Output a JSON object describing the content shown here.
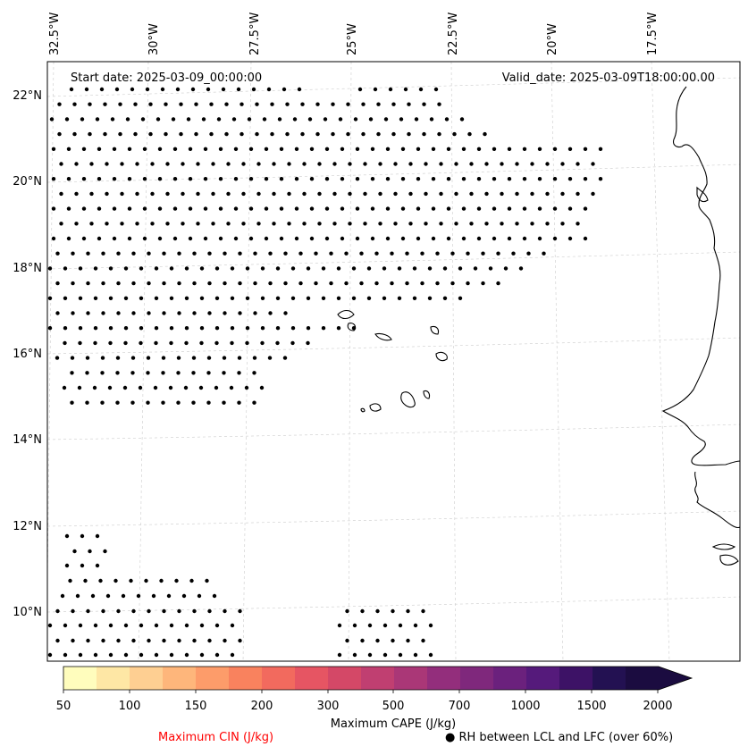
{
  "header": {
    "start_date": "Start date: 2025-03-09_00:00:00",
    "valid_date": "Valid_date: 2025-03-09T18:00:00.00"
  },
  "map": {
    "lon_labels": [
      "32.5°W",
      "30°W",
      "27.5°W",
      "25°W",
      "22.5°W",
      "20°W",
      "17.5°W"
    ],
    "lat_labels": [
      "22°N",
      "20°N",
      "18°N",
      "16°N",
      "14°N",
      "12°N",
      "10°N"
    ],
    "gridlines": true
  },
  "colorbar": {
    "colors": [
      "#fffdbd",
      "#fee7a5",
      "#fecf92",
      "#feb67b",
      "#fd9c6a",
      "#f9825e",
      "#f26a5e",
      "#e65563",
      "#d44867",
      "#c03f71",
      "#aa3777",
      "#932e7c",
      "#7f287c",
      "#6b217d",
      "#551a7b",
      "#3d1266",
      "#231152",
      "#1b0c40"
    ],
    "tick_labels": [
      "50",
      "100",
      "150",
      "200",
      "300",
      "500",
      "700",
      "1000",
      "1500",
      "2000"
    ],
    "label": "Maximum CAPE (J/kg)"
  },
  "legend": {
    "cin_label": "Maximum CIN (J/kg)",
    "cin_color": "#ff0000",
    "rh_symbol": "●",
    "rh_label": "RH between LCL and LFC (over 60%)"
  }
}
